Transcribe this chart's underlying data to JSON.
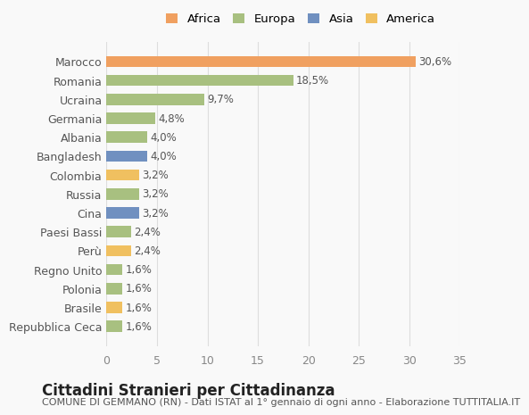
{
  "countries": [
    "Repubblica Ceca",
    "Brasile",
    "Polonia",
    "Regno Unito",
    "Perù",
    "Paesi Bassi",
    "Cina",
    "Russia",
    "Colombia",
    "Bangladesh",
    "Albania",
    "Germania",
    "Ucraina",
    "Romania",
    "Marocco"
  ],
  "values": [
    1.6,
    1.6,
    1.6,
    1.6,
    2.4,
    2.4,
    3.2,
    3.2,
    3.2,
    4.0,
    4.0,
    4.8,
    9.7,
    18.5,
    30.6
  ],
  "colors": [
    "#a8c080",
    "#f0c060",
    "#a8c080",
    "#a8c080",
    "#f0c060",
    "#a8c080",
    "#7090c0",
    "#a8c080",
    "#f0c060",
    "#7090c0",
    "#a8c080",
    "#a8c080",
    "#a8c080",
    "#a8c080",
    "#f0a060"
  ],
  "labels": [
    "1,6%",
    "1,6%",
    "1,6%",
    "1,6%",
    "2,4%",
    "2,4%",
    "3,2%",
    "3,2%",
    "3,2%",
    "4,0%",
    "4,0%",
    "4,8%",
    "9,7%",
    "18,5%",
    "30,6%"
  ],
  "legend_labels": [
    "Africa",
    "Europa",
    "Asia",
    "America"
  ],
  "legend_colors": [
    "#f0a060",
    "#a8c080",
    "#7090c0",
    "#f0c060"
  ],
  "title": "Cittadini Stranieri per Cittadinanza",
  "subtitle": "COMUNE DI GEMMANO (RN) - Dati ISTAT al 1° gennaio di ogni anno - Elaborazione TUTTITALIA.IT",
  "xlim": [
    0,
    35
  ],
  "xticks": [
    0,
    5,
    10,
    15,
    20,
    25,
    30,
    35
  ],
  "background_color": "#f9f9f9",
  "bar_height": 0.6,
  "label_fontsize": 8.5,
  "tick_fontsize": 9,
  "title_fontsize": 12,
  "subtitle_fontsize": 8
}
